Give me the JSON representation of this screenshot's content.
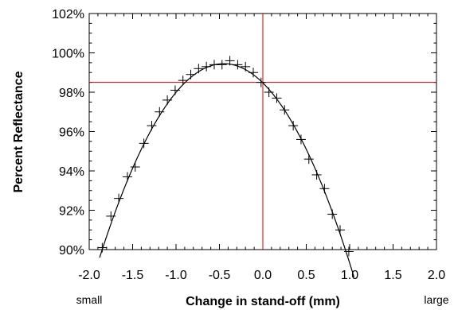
{
  "chart_data": {
    "type": "scatter",
    "title": "",
    "xlabel": "Change in stand-off (mm)",
    "ylabel": "Percent Reflectance",
    "x_left_note": "small",
    "x_right_note": "large",
    "xlim": [
      -2.0,
      2.0
    ],
    "ylim": [
      90,
      102
    ],
    "x_ticks": [
      -2.0,
      -1.5,
      -1.0,
      -0.5,
      0.0,
      0.5,
      1.0,
      1.5,
      2.0
    ],
    "x_tick_labels": [
      "-2.0",
      "-1.5",
      "-1.0",
      "-0.5",
      "0.0",
      "0.5",
      "1.0",
      "1.5",
      "2.0"
    ],
    "y_ticks": [
      90,
      92,
      94,
      96,
      98,
      100,
      102
    ],
    "y_tick_labels": [
      "90%",
      "92%",
      "94%",
      "96%",
      "98%",
      "100%",
      "102%"
    ],
    "grid": false,
    "reference_lines": {
      "x": 0.0,
      "y": 98.5,
      "color": "#cc0000"
    },
    "series": [
      {
        "kind": "points",
        "marker": "plus",
        "color": "#000000",
        "x": [
          -1.85,
          -1.75,
          -1.66,
          -1.56,
          -1.47,
          -1.37,
          -1.28,
          -1.19,
          -1.1,
          -1.01,
          -0.92,
          -0.83,
          -0.74,
          -0.65,
          -0.56,
          -0.47,
          -0.38,
          -0.29,
          -0.2,
          -0.11,
          -0.02,
          0.07,
          0.16,
          0.25,
          0.35,
          0.44,
          0.53,
          0.62,
          0.71,
          0.8,
          0.89,
          0.99
        ],
        "y": [
          90.1,
          91.7,
          92.6,
          93.7,
          94.2,
          95.4,
          96.3,
          97.0,
          97.6,
          98.1,
          98.6,
          98.9,
          99.2,
          99.3,
          99.4,
          99.4,
          99.6,
          99.4,
          99.3,
          99.0,
          98.5,
          98.0,
          97.7,
          97.1,
          96.3,
          95.6,
          94.6,
          93.8,
          93.1,
          91.8,
          91.0,
          89.9
        ]
      },
      {
        "kind": "curve",
        "model": "quadratic",
        "color": "#000000",
        "vertex_x": -0.45,
        "vertex_y": 99.45,
        "curvature": -4.82,
        "x_range": [
          -1.88,
          1.05
        ]
      }
    ]
  }
}
